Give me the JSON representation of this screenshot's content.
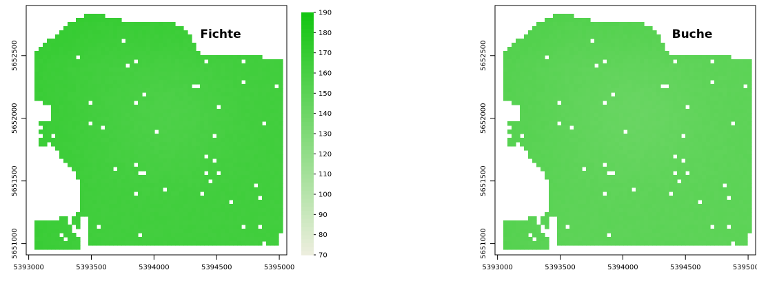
{
  "chart_data": [
    {
      "type": "heatmap",
      "title": "Fichte",
      "x_ticks": [
        5393000,
        5393500,
        5394000,
        5394500,
        5395000
      ],
      "y_ticks": [
        5651000,
        5651500,
        5652000,
        5652500
      ],
      "xlim": [
        5392980,
        5395060
      ],
      "ylim": [
        5650910,
        5652900
      ],
      "value_range": [
        150,
        175
      ],
      "colors": {
        "low": "#EEEEDF",
        "high": "#11C510",
        "border": "#000000"
      },
      "legend": {
        "position": "right",
        "range": [
          70,
          190
        ],
        "ticks": [
          190,
          180,
          170,
          160,
          150,
          140,
          130,
          120,
          110,
          100,
          90,
          80,
          70
        ]
      }
    },
    {
      "type": "heatmap",
      "title": "Buche",
      "x_ticks": [
        5393000,
        5393500,
        5394000,
        5394500,
        5395000
      ],
      "y_ticks": [
        5651000,
        5651500,
        5652000,
        5652500
      ],
      "xlim": [
        5392980,
        5395060
      ],
      "ylim": [
        5650910,
        5652900
      ],
      "value_range": [
        135,
        160
      ],
      "colors": {
        "low": "#EEEEDF",
        "high": "#11C510",
        "border": "#000000"
      },
      "legend": null
    }
  ]
}
